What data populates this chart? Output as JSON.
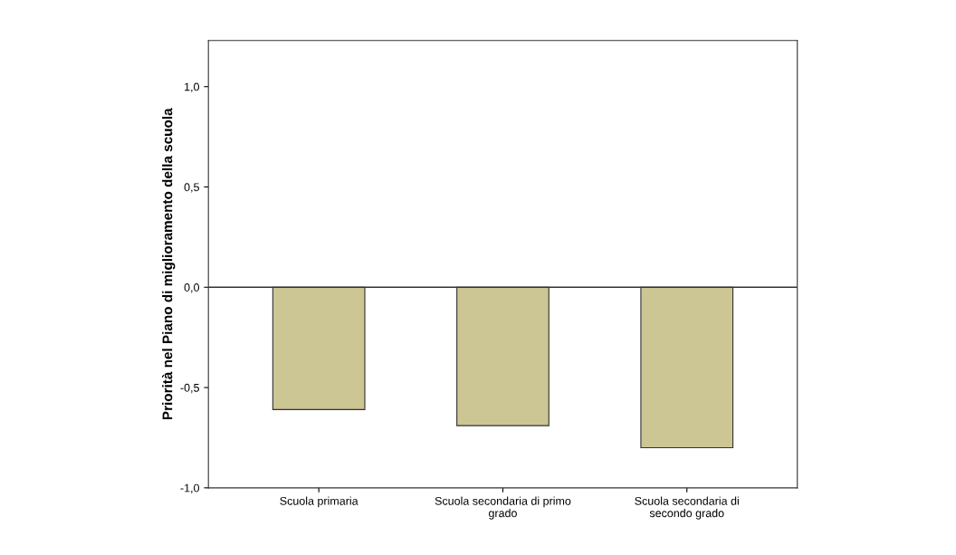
{
  "chart_data": {
    "type": "bar",
    "ylabel": "Priorità nel Piano di miglioramento della scuola",
    "categories": [
      "Scuola primaria",
      "Scuola secondaria di primo\ngrado",
      "Scuola secondaria di\nsecondo grado"
    ],
    "values": [
      -0.61,
      -0.69,
      -0.8
    ],
    "color": "#ccc594",
    "ylim": [
      -1.0,
      1.23
    ],
    "yticks": [
      {
        "value": -1.0,
        "label": "-1,0"
      },
      {
        "value": -0.5,
        "label": "-0,5"
      },
      {
        "value": 0.0,
        "label": "0,0"
      },
      {
        "value": 0.5,
        "label": "0,5"
      },
      {
        "value": 1.0,
        "label": "1,0"
      }
    ],
    "ref_lines": [
      {
        "axis": "y",
        "value": 0,
        "label": null,
        "color": "#333333"
      }
    ],
    "grid": false
  }
}
